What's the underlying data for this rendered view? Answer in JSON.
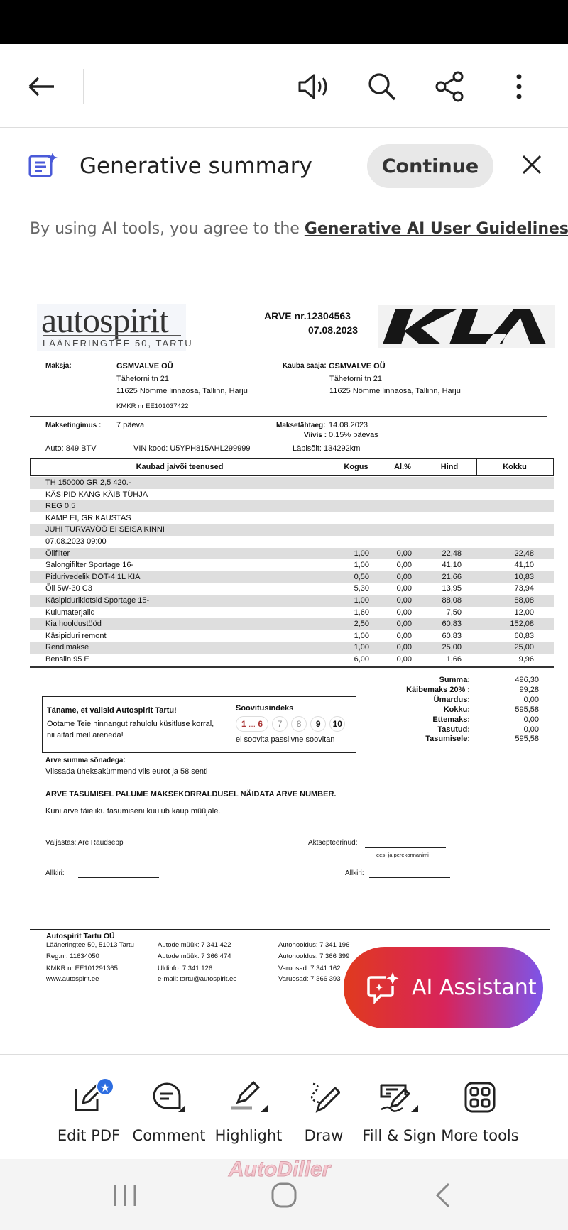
{
  "toolbar": {
    "icons": [
      "back-arrow-icon",
      "read-aloud-icon",
      "search-icon",
      "share-icon",
      "more-icon"
    ]
  },
  "summary": {
    "title": "Generative summary",
    "continue_label": "Continue",
    "guidelines_prefix": "By using AI tools, you agree to the ",
    "guidelines_link": "Generative AI User Guidelines."
  },
  "invoice": {
    "logo_text": "autospirit",
    "logo_address": "LÄÄNERINGTEE 50, TARTU",
    "brand_logo": "KIA",
    "number": "ARVE nr.12304563",
    "date": "07.08.2023",
    "payer_label": "Maksja:",
    "payer_name": "GSMVALVE OÜ",
    "payer_street": "Tähetorni tn 21",
    "payer_city": "11625 Nõmme linnaosa, Tallinn, Harju",
    "payer_kmkr": "KMKR nr EE101037422",
    "recipient_label": "Kauba saaja:",
    "recipient_name": "GSMVALVE OÜ",
    "recipient_street": "Tähetorni tn 21",
    "recipient_city": "11625 Nõmme linnaosa, Tallinn, Harju",
    "terms_label": "Maksetingimus :",
    "terms_value": "7 päeva",
    "due_label": "Maksetähtaeg:",
    "due_value": "14.08.2023",
    "penalty_label": "Viivis :",
    "penalty_value": "0.15% päevas",
    "car": "Auto: 849 BTV",
    "vin": "VIN kood: U5YPH815AHL299999",
    "mileage": "Läbisõit: 134292km",
    "columns": [
      "Kaubad ja/või teenused",
      "Kogus",
      "Al.%",
      "Hind",
      "Kokku"
    ],
    "rows": [
      [
        "TH 150000 GR 2,5 420.-",
        "",
        "",
        "",
        ""
      ],
      [
        "KÄSIPID KANG KÄIB TÜHJA",
        "",
        "",
        "",
        ""
      ],
      [
        "REG 0,5",
        "",
        "",
        "",
        ""
      ],
      [
        "KAMP EI, GR KAUSTAS",
        "",
        "",
        "",
        ""
      ],
      [
        "JUHI TURVAVÖÖ EI SEISA KINNI",
        "",
        "",
        "",
        ""
      ],
      [
        "07.08.2023 09:00",
        "",
        "",
        "",
        ""
      ],
      [
        "Õlifilter",
        "1,00",
        "0,00",
        "22,48",
        "22,48"
      ],
      [
        "Salongifilter Sportage 16-",
        "1,00",
        "0,00",
        "41,10",
        "41,10"
      ],
      [
        "Pidurivedelik DOT-4 1L KIA",
        "0,50",
        "0,00",
        "21,66",
        "10,83"
      ],
      [
        "Õli 5W-30 C3",
        "5,30",
        "0,00",
        "13,95",
        "73,94"
      ],
      [
        "Käsipiduriklotsid Sportage 15-",
        "1,00",
        "0,00",
        "88,08",
        "88,08"
      ],
      [
        "Kulumaterjalid",
        "1,60",
        "0,00",
        "7,50",
        "12,00"
      ],
      [
        "Kia hooldustööd",
        "2,50",
        "0,00",
        "60,83",
        "152,08"
      ],
      [
        "Käsipiduri remont",
        "1,00",
        "0,00",
        "60,83",
        "60,83"
      ],
      [
        "Rendimakse",
        "1,00",
        "0,00",
        "25,00",
        "25,00"
      ],
      [
        "Bensiin 95 E",
        "6,00",
        "0,00",
        "1,66",
        "9,96"
      ]
    ],
    "totals": [
      [
        "Summa:",
        "496,30"
      ],
      [
        "Käibemaks  20% :",
        "99,28"
      ],
      [
        "Ümardus:",
        "0,00"
      ],
      [
        "Kokku:",
        "595,58"
      ],
      [
        "Ettemaks:",
        "0,00"
      ],
      [
        "Tasutud:",
        "0,00"
      ],
      [
        "Tasumisele:",
        "595,58"
      ]
    ],
    "feedback": {
      "title": "Täname, et valisid Autospirit Tartu!",
      "text1": "Ootame Teie hinnangut rahulolu küsitluse korral,",
      "text2": "nii aitad meil areneda!",
      "index_title": "Soovitusindeks",
      "scale": [
        "1",
        "...",
        "6",
        "7",
        "8",
        "9",
        "10"
      ],
      "scale_labels": [
        "ei soovita",
        "passiivne",
        "soovitan"
      ]
    },
    "words_label": "Arve summa sõnadega:",
    "words_value": "Viissada üheksakümmend viis eurot ja 58 senti",
    "notice": "ARVE TASUMISEL PALUME MAKSEKORRALDUSEL NÄIDATA ARVE NUMBER.",
    "ownership": "Kuni arve täieliku tasumiseni kuulub kaup müüjale.",
    "issued_by": "Väljastas: Are Raudsepp",
    "accepted": "Aktsepteerinud:",
    "name_hint": "ees- ja perekonnanimi",
    "signature": "Allkiri:",
    "footer": {
      "col1": [
        "Autospirit Tartu OÜ",
        "Lääneringtee 50, 51013 Tartu",
        "Reg.nr.   11634050",
        "KMKR nr.EE101291365",
        "www.autospirit.ee"
      ],
      "col2": [
        "Autode müük: 7 341 422",
        "Autode müük: 7 366 474",
        "Üldinfo: 7 341 126",
        "e-mail: tartu@autospirit.ee"
      ],
      "col3": [
        "Autohooldus: 7 341 196",
        "Autohooldus: 7 366 399",
        "Varuosad: 7 341 162",
        "Varuosad: 7 366 393"
      ]
    }
  },
  "ai_assistant_label": "AI Assistant",
  "tools": [
    "Edit PDF",
    "Comment",
    "Highlight",
    "Draw",
    "Fill & Sign",
    "More tools"
  ],
  "watermark": "AutoDiller",
  "colors": {
    "accent": "#2d6de0",
    "ai_gradient_start": "#e03a1e",
    "ai_gradient_end": "#7c55ea"
  }
}
